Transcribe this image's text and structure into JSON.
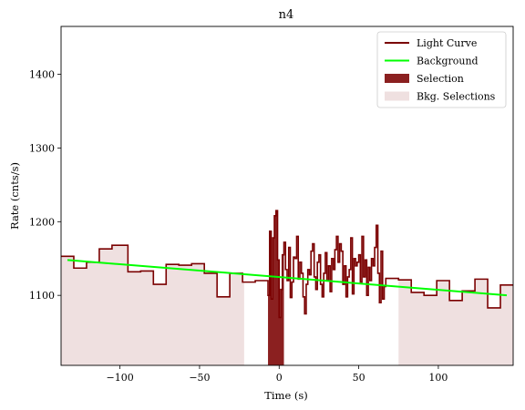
{
  "chart_data": {
    "type": "line",
    "title": "n4",
    "xlabel": "Time (s)",
    "ylabel": "Rate (cnts/s)",
    "xlim": [
      -137,
      147
    ],
    "ylim": [
      1005,
      1465
    ],
    "xticks": [
      -100,
      -50,
      0,
      50,
      100
    ],
    "yticks": [
      1100,
      1200,
      1300,
      1400
    ],
    "legend_position": "top-right",
    "colors": {
      "light_curve": "#7a0000",
      "background": "#00ff00",
      "selection": "#8b2020",
      "bkg_selection": "#efe0e0"
    },
    "series": [
      {
        "name": "Light Curve",
        "style": "step",
        "edges": [
          -137,
          -129,
          -121,
          -113,
          -105,
          -95,
          -87,
          -79,
          -71,
          -63,
          -55,
          -47,
          -39,
          -31,
          -23,
          -15,
          -7,
          -6,
          -5,
          -4,
          -3,
          -2,
          -1,
          0,
          1,
          2,
          3,
          4,
          5,
          6,
          7,
          8,
          9,
          10,
          11,
          12,
          13,
          14,
          15,
          16,
          17,
          18,
          19,
          20,
          21,
          22,
          23,
          24,
          25,
          26,
          27,
          28,
          29,
          30,
          31,
          32,
          33,
          34,
          35,
          36,
          37,
          38,
          39,
          40,
          41,
          42,
          43,
          44,
          45,
          46,
          47,
          48,
          49,
          50,
          51,
          52,
          53,
          54,
          55,
          56,
          57,
          58,
          59,
          60,
          61,
          62,
          63,
          64,
          65,
          66,
          67,
          75,
          83,
          91,
          99,
          107,
          115,
          123,
          131,
          139,
          147
        ],
        "values": [
          1153,
          1137,
          1145,
          1163,
          1168,
          1132,
          1133,
          1115,
          1142,
          1141,
          1143,
          1130,
          1098,
          1130,
          1118,
          1120,
          1100,
          1187,
          1095,
          1178,
          1208,
          1215,
          1148,
          1070,
          1108,
          1155,
          1172,
          1135,
          1120,
          1165,
          1097,
          1118,
          1152,
          1150,
          1180,
          1122,
          1145,
          1130,
          1098,
          1075,
          1115,
          1135,
          1128,
          1160,
          1170,
          1125,
          1108,
          1145,
          1155,
          1115,
          1098,
          1130,
          1158,
          1120,
          1140,
          1105,
          1150,
          1135,
          1162,
          1180,
          1145,
          1170,
          1160,
          1115,
          1140,
          1098,
          1125,
          1135,
          1178,
          1102,
          1150,
          1140,
          1145,
          1155,
          1118,
          1180,
          1125,
          1148,
          1100,
          1138,
          1120,
          1150,
          1140,
          1165,
          1195,
          1130,
          1090,
          1160,
          1095,
          1112,
          1123,
          1121,
          1104,
          1100,
          1120,
          1093,
          1106,
          1122,
          1083,
          1114
        ]
      },
      {
        "name": "Background",
        "style": "line",
        "x": [
          -133,
          143
        ],
        "y": [
          1148,
          1100
        ]
      }
    ],
    "selection": {
      "name": "Selection",
      "x0": -7,
      "x1": 3
    },
    "bkg_selections": {
      "name": "Bkg. Selections",
      "ranges": [
        [
          -137,
          -22
        ],
        [
          75,
          147
        ]
      ]
    }
  }
}
